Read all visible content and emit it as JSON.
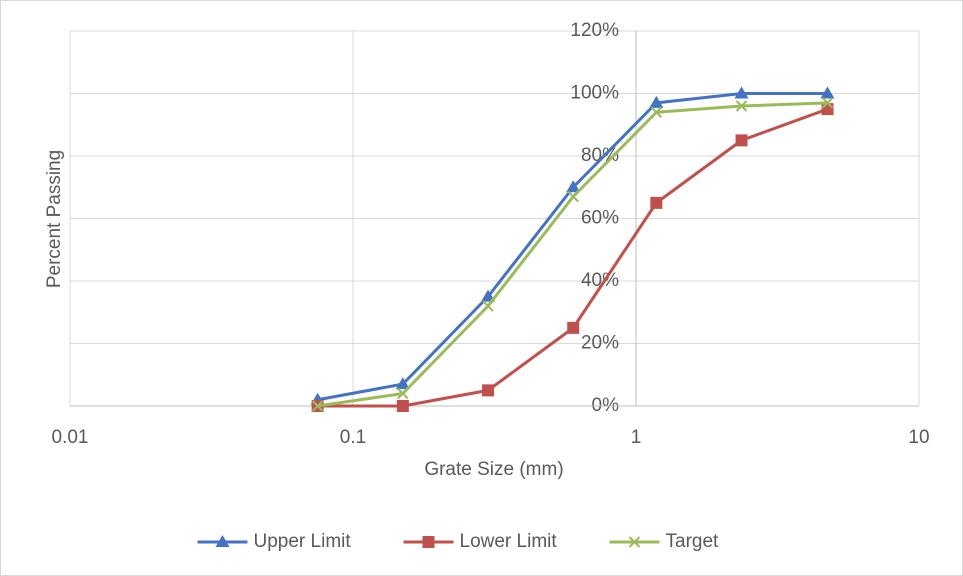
{
  "chart_data": {
    "type": "line",
    "x_axis_label": "Grate Size (mm)",
    "y_axis_label": "Percent Passing",
    "x": [
      0.075,
      0.15,
      0.3,
      0.6,
      1.18,
      2.36,
      4.75
    ],
    "series": [
      {
        "name": "Upper Limit",
        "color": "#4472c4",
        "marker": "triangle",
        "values": [
          2,
          7,
          35,
          70,
          97,
          100,
          100
        ]
      },
      {
        "name": "Lower Limit",
        "color": "#c0504d",
        "marker": "square",
        "values": [
          0,
          0,
          5,
          25,
          65,
          85,
          95
        ]
      },
      {
        "name": "Target",
        "color": "#9bbb59",
        "marker": "x",
        "values": [
          0,
          4,
          32,
          67,
          94,
          96,
          97
        ]
      }
    ],
    "xscale": "log",
    "xlim": [
      0.01,
      10
    ],
    "xticks": [
      0.01,
      0.1,
      1,
      10
    ],
    "ylim": [
      0,
      120
    ],
    "yticks": [
      {
        "value": 0,
        "label": "0%"
      },
      {
        "value": 20,
        "label": "20%"
      },
      {
        "value": 40,
        "label": "40%"
      },
      {
        "value": 60,
        "label": "60%"
      },
      {
        "value": 80,
        "label": "80%"
      },
      {
        "value": 100,
        "label": "100%"
      },
      {
        "value": 120,
        "label": "120%"
      }
    ],
    "y_axis_crosses": 1,
    "grid": true,
    "legend": "bottom"
  }
}
